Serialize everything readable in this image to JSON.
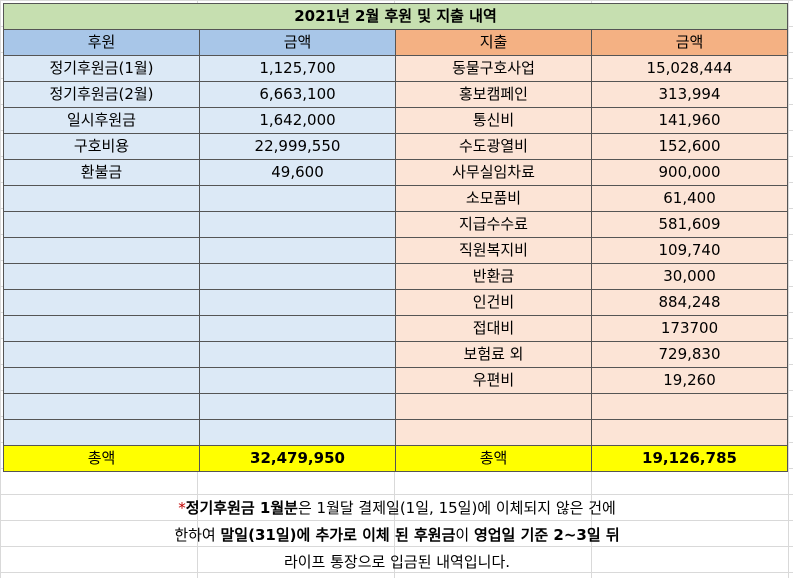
{
  "title": "2021년 2월 후원 및 지출 내역",
  "headers": {
    "donation": "후원",
    "donation_amount": "금액",
    "expense": "지출",
    "expense_amount": "금액"
  },
  "donations": [
    {
      "label": "정기후원금(1월)",
      "amount": "1,125,700"
    },
    {
      "label": "정기후원금(2월)",
      "amount": "6,663,100"
    },
    {
      "label": "일시후원금",
      "amount": "1,642,000"
    },
    {
      "label": "구호비용",
      "amount": "22,999,550"
    },
    {
      "label": "환불금",
      "amount": "49,600"
    },
    {
      "label": "",
      "amount": ""
    },
    {
      "label": "",
      "amount": ""
    },
    {
      "label": "",
      "amount": ""
    },
    {
      "label": "",
      "amount": ""
    },
    {
      "label": "",
      "amount": ""
    },
    {
      "label": "",
      "amount": ""
    },
    {
      "label": "",
      "amount": ""
    },
    {
      "label": "",
      "amount": ""
    },
    {
      "label": "",
      "amount": ""
    },
    {
      "label": "",
      "amount": ""
    }
  ],
  "expenses": [
    {
      "label": "동물구호사업",
      "amount": "15,028,444"
    },
    {
      "label": "홍보캠페인",
      "amount": "313,994"
    },
    {
      "label": "통신비",
      "amount": "141,960"
    },
    {
      "label": "수도광열비",
      "amount": "152,600"
    },
    {
      "label": "사무실임차료",
      "amount": "900,000"
    },
    {
      "label": "소모품비",
      "amount": "61,400"
    },
    {
      "label": "지급수수료",
      "amount": "581,609"
    },
    {
      "label": "직원복지비",
      "amount": "109,740"
    },
    {
      "label": "반환금",
      "amount": "30,000"
    },
    {
      "label": "인건비",
      "amount": "884,248"
    },
    {
      "label": "접대비",
      "amount": "173700"
    },
    {
      "label": "보험료 외",
      "amount": "729,830"
    },
    {
      "label": "우편비",
      "amount": "19,260"
    },
    {
      "label": "",
      "amount": ""
    },
    {
      "label": "",
      "amount": ""
    }
  ],
  "totals": {
    "donation_label": "총액",
    "donation_total": "32,479,950",
    "expense_label": "총액",
    "expense_total": "19,126,785"
  },
  "note": {
    "star": "*",
    "l1_b1": "정기후원금 1월분",
    "l1_t1": "은 1월달 결제일(1일, 15일)에 이체되지 않은 건에",
    "l2_t1": "한하여 ",
    "l2_b1": "말일(31일)에 추가로 이체 된 후원금",
    "l2_t2": "이 ",
    "l2_b2": "영업일 기준 2~3일 뒤",
    "l3_t1": "라이프 통장으로 입금된 내역입니다."
  },
  "colors": {
    "title_bg": "#c6dfb0",
    "donation_header": "#a8c6e8",
    "donation_cell": "#dce9f6",
    "expense_header": "#f4b183",
    "expense_cell": "#fce4d6",
    "total_row": "#ffff00",
    "note_star": "#c00000"
  }
}
